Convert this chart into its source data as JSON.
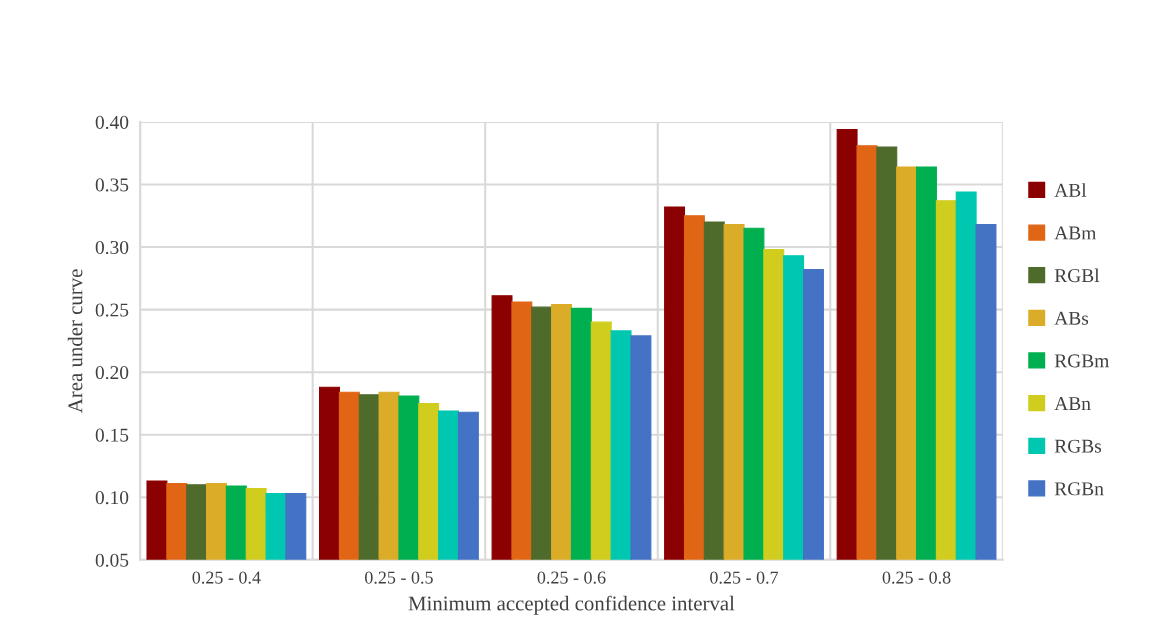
{
  "chart_data": {
    "type": "bar",
    "xlabel": "Minimum accepted confidence interval",
    "ylabel": "Area under curve",
    "categories": [
      "0.25 - 0.4",
      "0.25 - 0.5",
      "0.25 - 0.6",
      "0.25 - 0.7",
      "0.25 - 0.8"
    ],
    "series": [
      {
        "name": "ABl",
        "color": "#8b0000",
        "values": [
          0.113,
          0.188,
          0.261,
          0.332,
          0.394
        ]
      },
      {
        "name": "ABm",
        "color": "#e06616",
        "values": [
          0.111,
          0.184,
          0.256,
          0.325,
          0.381
        ]
      },
      {
        "name": "RGBl",
        "color": "#4e6b2c",
        "values": [
          0.11,
          0.182,
          0.252,
          0.32,
          0.38
        ]
      },
      {
        "name": "ABs",
        "color": "#dbac28",
        "values": [
          0.111,
          0.184,
          0.254,
          0.318,
          0.364
        ]
      },
      {
        "name": "RGBm",
        "color": "#00b050",
        "values": [
          0.109,
          0.181,
          0.251,
          0.315,
          0.364
        ]
      },
      {
        "name": "ABn",
        "color": "#d0cd1e",
        "values": [
          0.107,
          0.175,
          0.24,
          0.298,
          0.337
        ]
      },
      {
        "name": "RGBs",
        "color": "#00c7b0",
        "values": [
          0.103,
          0.169,
          0.233,
          0.293,
          0.344
        ]
      },
      {
        "name": "RGBn",
        "color": "#4472c4",
        "values": [
          0.103,
          0.168,
          0.229,
          0.282,
          0.318
        ]
      }
    ],
    "ylim": [
      0.05,
      0.4
    ],
    "yticks": [
      {
        "value": 0.05,
        "label": "0.05"
      },
      {
        "value": 0.1,
        "label": "0.10"
      },
      {
        "value": 0.15,
        "label": "0.15"
      },
      {
        "value": 0.2,
        "label": "0.20"
      },
      {
        "value": 0.25,
        "label": "0.25"
      },
      {
        "value": 0.3,
        "label": "0.30"
      },
      {
        "value": 0.35,
        "label": "0.35"
      },
      {
        "value": 0.4,
        "label": "0.40"
      }
    ],
    "grid": true,
    "legend": "right"
  }
}
